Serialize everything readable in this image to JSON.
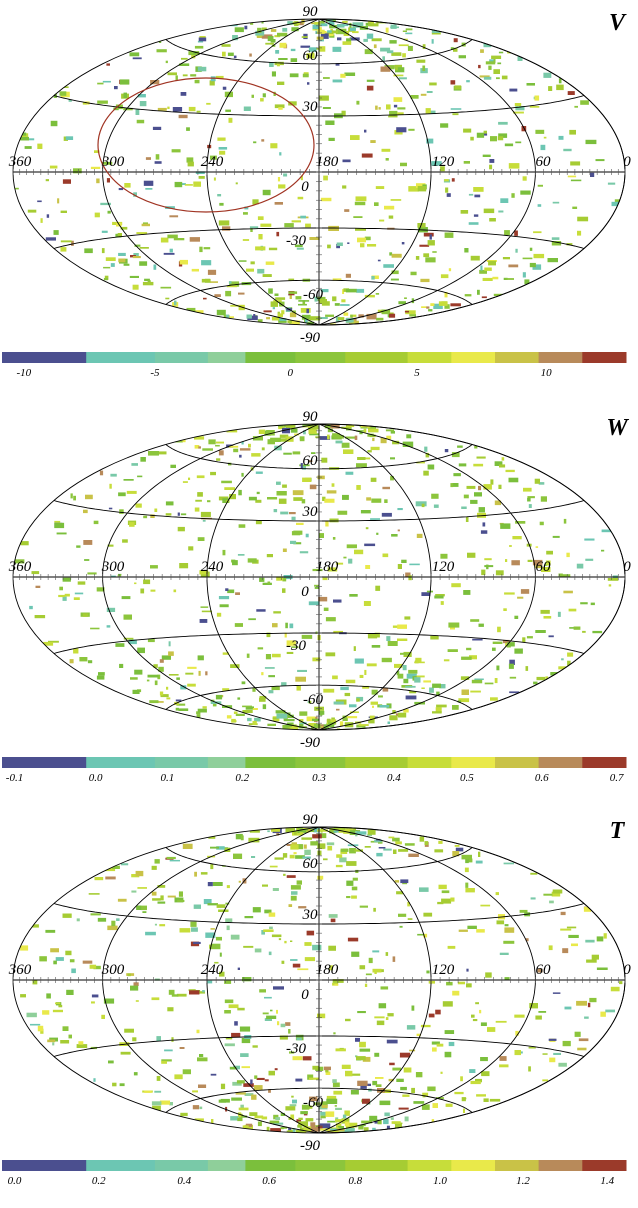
{
  "panels": [
    {
      "name": "V",
      "meridian_labels": [
        "360",
        "300",
        "240",
        "180",
        "120",
        "60",
        "0"
      ],
      "parallel_labels": [
        "90",
        "60",
        "30",
        "0",
        "-30",
        "-60",
        "-90"
      ],
      "colorbar_ticks": [
        {
          "label": "-10",
          "frac": 0.035
        },
        {
          "label": "-5",
          "frac": 0.245
        },
        {
          "label": "0",
          "frac": 0.462
        },
        {
          "label": "5",
          "frac": 0.665
        },
        {
          "label": "10",
          "frac": 0.872
        }
      ],
      "has_circle": true
    },
    {
      "name": "W",
      "meridian_labels": [
        "360",
        "300",
        "240",
        "180",
        "120",
        "60",
        "0"
      ],
      "parallel_labels": [
        "90",
        "60",
        "30",
        "0",
        "-30",
        "-60",
        "-90"
      ],
      "colorbar_ticks": [
        {
          "label": "-0.1",
          "frac": 0.02
        },
        {
          "label": "0.0",
          "frac": 0.15
        },
        {
          "label": "0.1",
          "frac": 0.265
        },
        {
          "label": "0.2",
          "frac": 0.385
        },
        {
          "label": "0.3",
          "frac": 0.508
        },
        {
          "label": "0.4",
          "frac": 0.628
        },
        {
          "label": "0.5",
          "frac": 0.745
        },
        {
          "label": "0.6",
          "frac": 0.865
        },
        {
          "label": "0.7",
          "frac": 0.985
        }
      ],
      "has_circle": false
    },
    {
      "name": "T",
      "meridian_labels": [
        "360",
        "300",
        "240",
        "180",
        "120",
        "60",
        "0"
      ],
      "parallel_labels": [
        "90",
        "60",
        "30",
        "0",
        "-30",
        "-60",
        "-90"
      ],
      "colorbar_ticks": [
        {
          "label": "0.0",
          "frac": 0.02
        },
        {
          "label": "0.2",
          "frac": 0.155
        },
        {
          "label": "0.4",
          "frac": 0.292
        },
        {
          "label": "0.6",
          "frac": 0.428
        },
        {
          "label": "0.8",
          "frac": 0.566
        },
        {
          "label": "1.0",
          "frac": 0.702
        },
        {
          "label": "1.2",
          "frac": 0.835
        },
        {
          "label": "1.4",
          "frac": 0.97
        }
      ],
      "has_circle": false
    }
  ],
  "palette": [
    "#4b4f8f",
    "#6cc6b3",
    "#79c9a8",
    "#8fcf9a",
    "#7bbf3c",
    "#8cc53c",
    "#a6cc33",
    "#c7dd3a",
    "#e9e94a",
    "#c9c247",
    "#b88a5a",
    "#9b3a2a"
  ]
}
